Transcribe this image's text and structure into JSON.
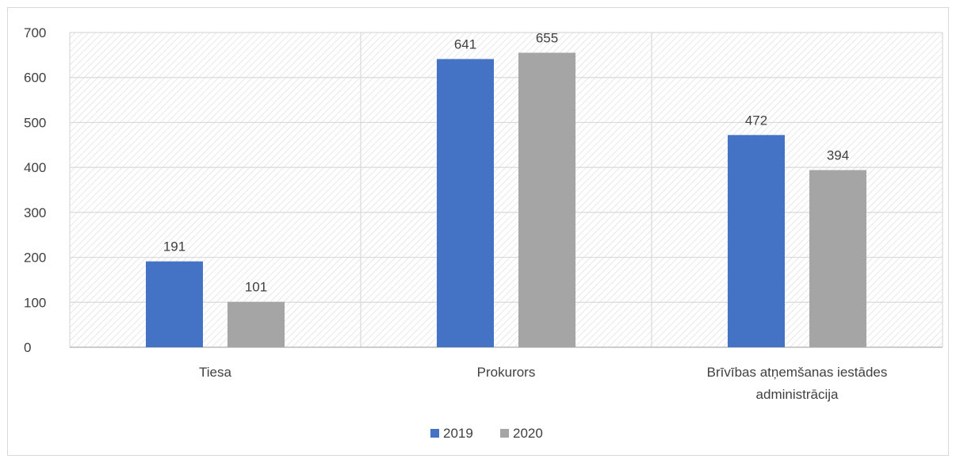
{
  "chart_data": {
    "type": "bar",
    "categories": [
      [
        "Tiesa"
      ],
      [
        "Prokurors"
      ],
      [
        "Brīvības atņemšanas iestādes",
        "administrācija"
      ]
    ],
    "series": [
      {
        "name": "2019",
        "values": [
          191,
          641,
          472
        ],
        "color": "#4472c4"
      },
      {
        "name": "2020",
        "values": [
          101,
          655,
          394
        ],
        "color": "#a5a5a5"
      }
    ],
    "ylim": [
      0,
      700
    ],
    "yticks": [
      0,
      100,
      200,
      300,
      400,
      500,
      600,
      700
    ],
    "grid": true,
    "legend": "bottom",
    "title": "",
    "xlabel": "",
    "ylabel": ""
  }
}
